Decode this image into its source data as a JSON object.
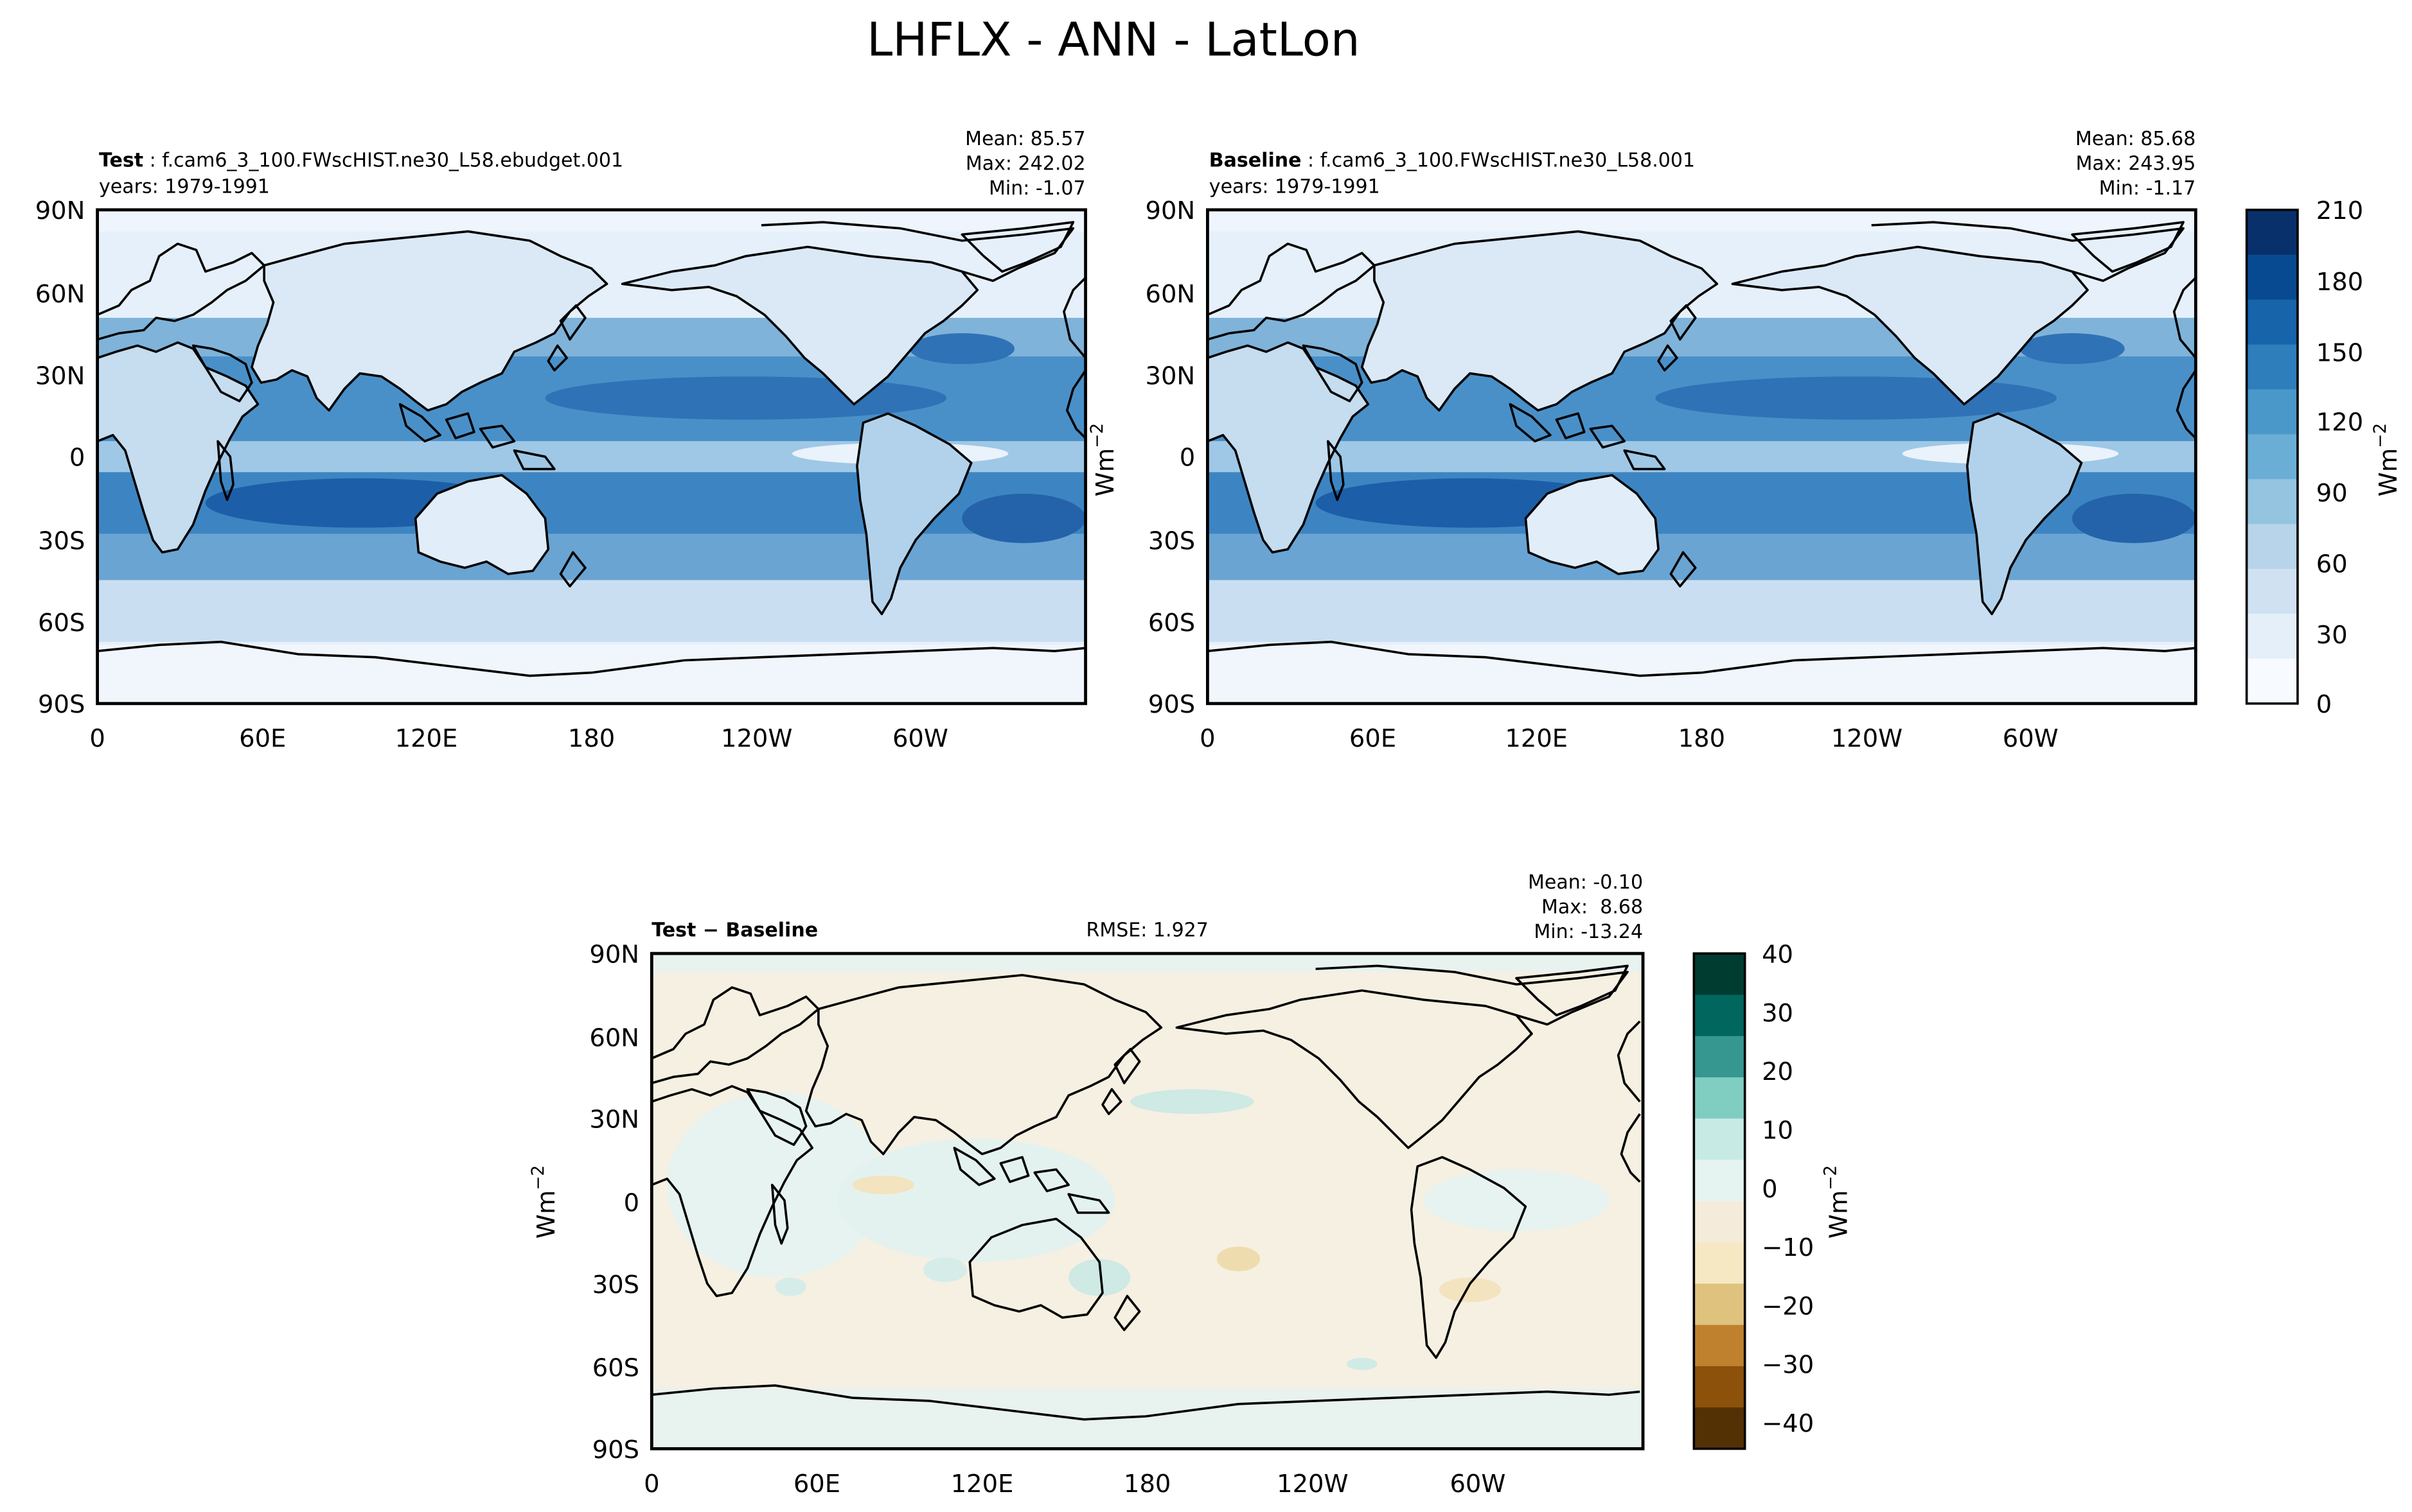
{
  "figure_title": "LHFLX - ANN - LatLon",
  "lon_ticks": [
    "0",
    "60E",
    "120E",
    "180",
    "120W",
    "60W"
  ],
  "lat_ticks": [
    "90N",
    "60N",
    "30N",
    "0",
    "30S",
    "60S",
    "90S"
  ],
  "units": "Wm",
  "units_exp": "−2",
  "panels": [
    {
      "id": "test",
      "label_bold": "Test",
      "label_rest": " : f.cam6_3_100.FWscHIST.ne30_L58.ebudget.001",
      "years": "years: 1979-1991",
      "stats": [
        "Mean: 85.57",
        "Max: 242.02",
        "Min: -1.07"
      ]
    },
    {
      "id": "baseline",
      "label_bold": "Baseline",
      "label_rest": " : f.cam6_3_100.FWscHIST.ne30_L58.001",
      "years": "years: 1979-1991",
      "stats": [
        "Mean: 85.68",
        "Max: 243.95",
        "Min: -1.17"
      ]
    },
    {
      "id": "diff",
      "label_bold": "Test − Baseline",
      "rmse": "RMSE: 1.927",
      "stats": [
        "Mean: -0.10",
        "Max:  8.68",
        "Min: -13.24"
      ]
    }
  ],
  "colorbars": {
    "blues": {
      "tick_labels": [
        "210",
        "180",
        "150",
        "120",
        "90",
        "60",
        "30",
        "0"
      ],
      "levels": 21,
      "colors": [
        "#f7fbff",
        "#e4eff9",
        "#d0e1f2",
        "#b7d4ea",
        "#94c4df",
        "#6aaed6",
        "#4a98c9",
        "#2e7ebc",
        "#1764ab",
        "#084a91",
        "#08306b"
      ]
    },
    "diverging": {
      "tick_labels": [
        "40",
        "30",
        "20",
        "10",
        "0",
        "−10",
        "−20",
        "−30",
        "−40"
      ],
      "colors": [
        "#003c30",
        "#01665e",
        "#35978f",
        "#80cdc1",
        "#c7eae5",
        "#e5f4f1",
        "#f5ebdb",
        "#f6e8c3",
        "#dfc27d",
        "#bf812d",
        "#8c510a",
        "#543005"
      ]
    }
  },
  "chart_data": {
    "type": "map",
    "variable": "LHFLX",
    "season": "ANN",
    "projection": "LatLon",
    "colorbar_ranges": {
      "test_and_baseline": [
        0,
        210
      ],
      "difference": [
        -40,
        40
      ]
    },
    "panels": [
      {
        "name": "Test",
        "mean": 85.57,
        "max": 242.02,
        "min": -1.07
      },
      {
        "name": "Baseline",
        "mean": 85.68,
        "max": 243.95,
        "min": -1.17
      },
      {
        "name": "Test - Baseline",
        "mean": -0.1,
        "max": 8.68,
        "min": -13.24,
        "rmse": 1.927
      }
    ]
  }
}
